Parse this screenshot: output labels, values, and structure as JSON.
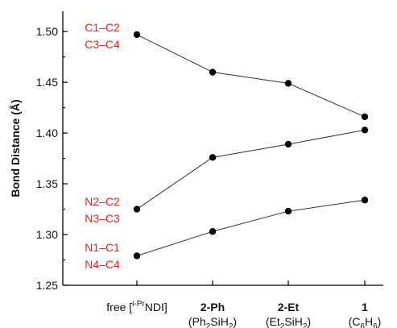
{
  "chart_data": {
    "type": "line",
    "title": "",
    "xlabel": "",
    "ylabel": "Bond Distance (Å)",
    "ylim": [
      1.25,
      1.52
    ],
    "yticks": [
      "1.25",
      "1.30",
      "1.35",
      "1.40",
      "1.45",
      "1.50"
    ],
    "grid": false,
    "categories": [
      {
        "name": "free [i-PrNDI]",
        "line1_prefix": "free [",
        "line1_sup": "i-Pr",
        "line1_suffix": "NDI]",
        "line2": "",
        "bold": false
      },
      {
        "name": "2-Ph (Ph2SiH2)",
        "line1": "2-Ph",
        "line2_parts": [
          "(Ph",
          "2",
          "SiH",
          "2",
          ")"
        ],
        "bold": true
      },
      {
        "name": "2-Et (Et2SiH2)",
        "line1": "2-Et",
        "line2_parts": [
          "(Et",
          "2",
          "SiH",
          "2",
          ")"
        ],
        "bold": true
      },
      {
        "name": "1 (C6H6)",
        "line1": "1",
        "line2_parts": [
          "(C",
          "6",
          "H",
          "6",
          ")"
        ],
        "bold": true
      }
    ],
    "series": [
      {
        "name": "C1–C2 / C3–C4",
        "label_lines": [
          "C1–C2",
          "C3–C4"
        ],
        "values": [
          1.497,
          1.46,
          1.449,
          1.416
        ]
      },
      {
        "name": "N2–C2 / N3–C3",
        "label_lines": [
          "N2–C2",
          "N3–C3"
        ],
        "values": [
          1.325,
          1.376,
          1.389,
          1.403
        ]
      },
      {
        "name": "N1–C1 / N4–C4",
        "label_lines": [
          "N1–C1",
          "N4–C4"
        ],
        "values": [
          1.279,
          1.303,
          1.323,
          1.334
        ]
      }
    ],
    "colors": {
      "series_label": "#e8231f",
      "line": "#333333",
      "marker": "#000000",
      "axis": "#000000"
    }
  }
}
